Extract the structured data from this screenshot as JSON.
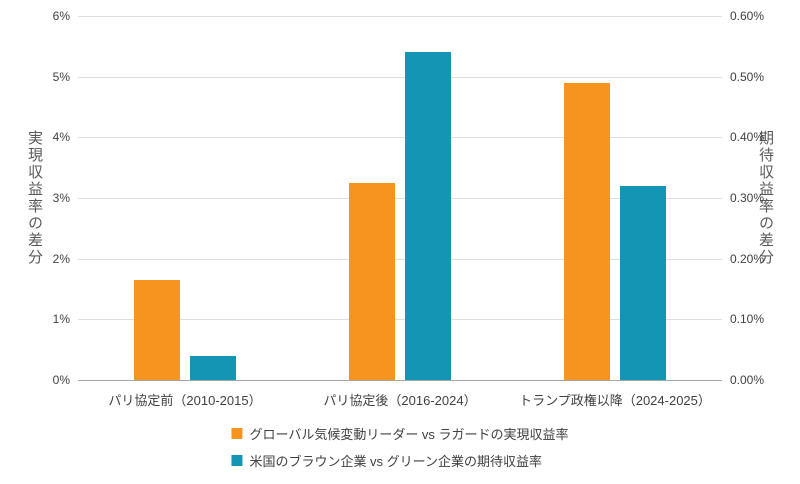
{
  "chart_data": {
    "type": "bar",
    "categories": [
      "パリ協定前（2010-2015）",
      "パリ協定後（2016-2024）",
      "トランプ政権以降（2024-2025）"
    ],
    "series": [
      {
        "name": "グローバル気候変動リーダー vs ラガードの実現収益率",
        "axis": "left",
        "color": "#F5941F",
        "values": [
          1.65,
          3.25,
          4.9
        ]
      },
      {
        "name": "米国のブラウン企業 vs グリーン企業の期待収益率",
        "axis": "right",
        "color": "#1396B4",
        "values": [
          0.04,
          0.54,
          0.32
        ]
      }
    ],
    "left_axis": {
      "label": "実現収益率の差分",
      "min": 0,
      "max": 6,
      "ticks": [
        "6%",
        "5%",
        "4%",
        "3%",
        "2%",
        "1%",
        "0%"
      ]
    },
    "right_axis": {
      "label": "期待収益率の差分",
      "min": 0,
      "max": 0.6,
      "ticks": [
        "0.60%",
        "0.50%",
        "0.40%",
        "0.30%",
        "0.20%",
        "0.10%",
        "0.00%"
      ]
    },
    "legend_position": "bottom",
    "grid": true,
    "title": ""
  }
}
